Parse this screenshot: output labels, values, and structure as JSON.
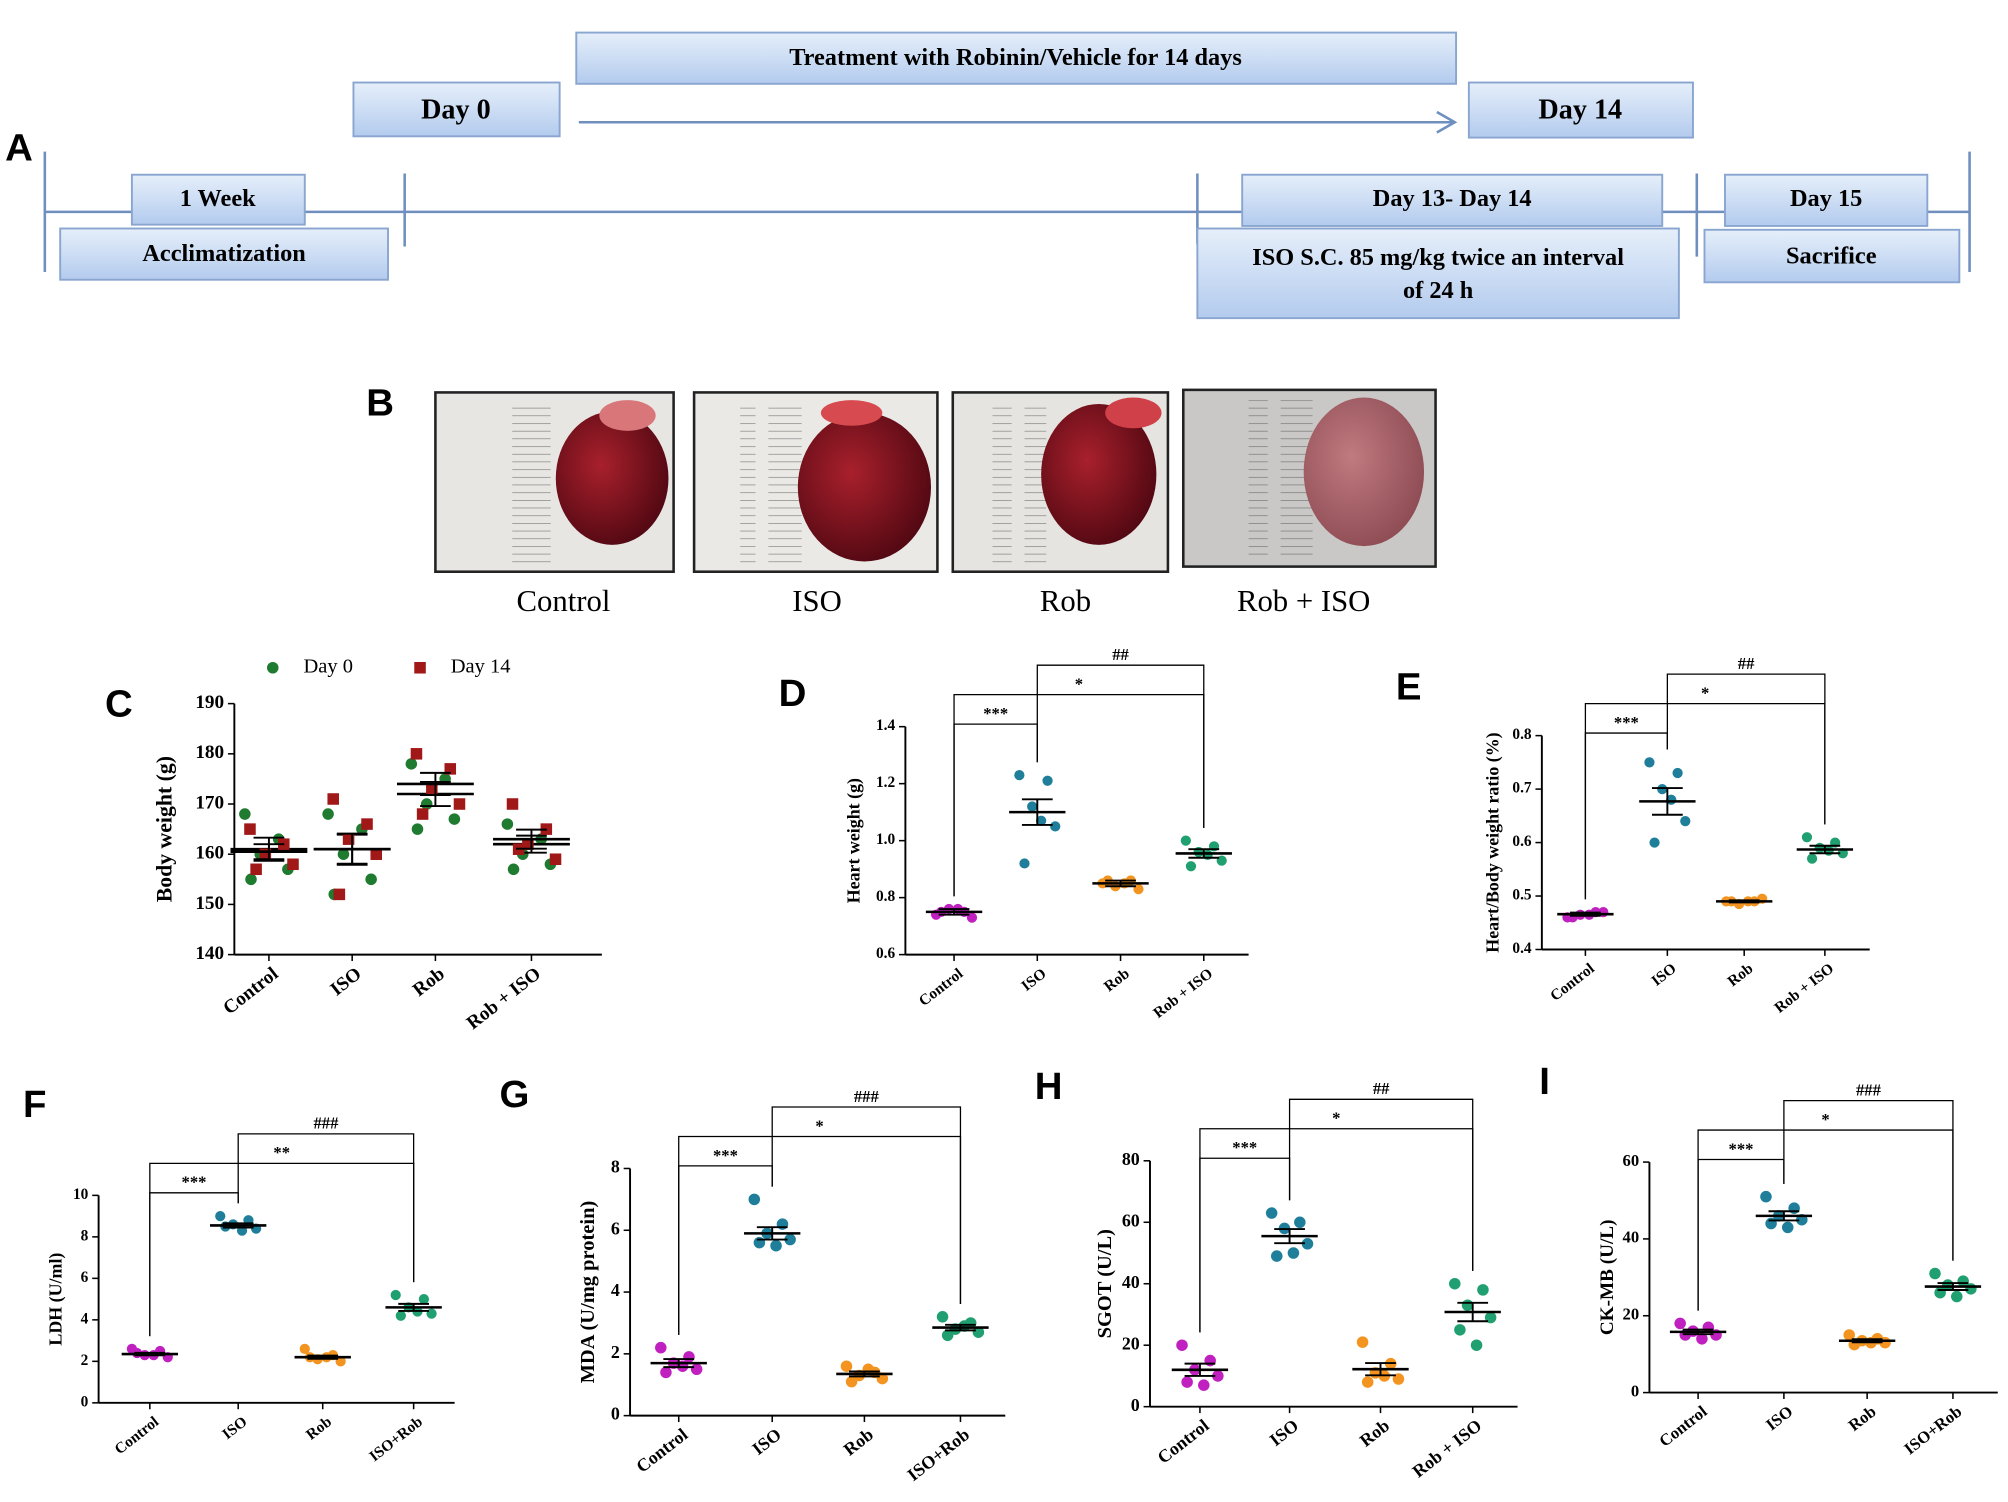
{
  "timeline": {
    "panel": "A",
    "treatment": "Treatment with Robinin/Vehicle for 14 days",
    "start": "Day 0",
    "end": "Day 14",
    "week": "1 Week",
    "acclimatization": "Acclimatization",
    "iso_days": "Day 13- Day 14",
    "iso_text": [
      "ISO S.C. 85 mg/kg twice an interval",
      "of 24 h"
    ],
    "day15": "Day 15",
    "sacrifice": "Sacrifice"
  },
  "photos": {
    "panel": "B",
    "labels": [
      "Control",
      "ISO",
      "Rob",
      "Rob + ISO"
    ]
  },
  "chart_data": [
    {
      "type": "scatter",
      "panel": "C",
      "ylabel": "Body weight (g)",
      "categories": [
        "Control",
        "ISO",
        "Rob",
        "Rob + ISO"
      ],
      "ylim": [
        140,
        190
      ],
      "yticks": [
        140,
        150,
        160,
        170,
        180,
        190
      ],
      "series": [
        {
          "name": "Day 0",
          "color": "#1e7b30",
          "marker": "circle",
          "points": [
            [
              168,
              163,
              160,
              157,
              155
            ],
            [
              168,
              165,
              160,
              155,
              152
            ],
            [
              178,
              175,
              170,
              167,
              165
            ],
            [
              166,
              163,
              160,
              158,
              157
            ]
          ],
          "mean": [
            161,
            161,
            172,
            162
          ],
          "sem": [
            2.3,
            2.9,
            2.4,
            1.7
          ]
        },
        {
          "name": "Day 14",
          "color": "#a01818",
          "marker": "square",
          "points": [
            [
              165,
              162,
              160,
              158,
              157
            ],
            [
              171,
              166,
              163,
              160,
              152
            ],
            [
              180,
              177,
              173,
              170,
              168
            ],
            [
              170,
              165,
              162,
              159,
              161
            ]
          ],
          "mean": [
            160.5,
            161,
            174,
            163
          ],
          "sem": [
            1.5,
            3.1,
            2.2,
            1.9
          ]
        }
      ],
      "comparisons": []
    },
    {
      "type": "scatter",
      "panel": "D",
      "ylabel": "Heart weight (g)",
      "categories": [
        "Control",
        "ISO",
        "Rob",
        "Rob + ISO"
      ],
      "ylim": [
        0.6,
        1.4
      ],
      "yticks": [
        0.6,
        0.8,
        {
          "value": 1,
          "label": "1.0"
        },
        1.2,
        1.4
      ],
      "colors": [
        "#c020c0",
        "#1f7f9a",
        "#f39420",
        "#20a070"
      ],
      "points": [
        [
          0.74,
          0.75,
          0.76,
          0.73,
          0.75,
          0.76
        ],
        [
          1.23,
          1.21,
          1.12,
          1.05,
          0.92,
          1.07
        ],
        [
          0.85,
          0.86,
          0.84,
          0.83,
          0.86,
          0.85
        ],
        [
          1.0,
          0.98,
          0.96,
          0.93,
          0.91,
          0.95
        ]
      ],
      "mean": [
        0.75,
        1.1,
        0.85,
        0.955
      ],
      "sem": [
        0.01,
        0.045,
        0.01,
        0.015
      ],
      "comparisons": [
        {
          "pair": [
            "Control",
            "ISO"
          ],
          "label": "***"
        },
        {
          "pair": [
            "Control",
            "Rob + ISO"
          ],
          "label": "*"
        },
        {
          "pair": [
            "ISO",
            "Rob + ISO"
          ],
          "label": "##"
        }
      ]
    },
    {
      "type": "scatter",
      "panel": "E",
      "ylabel": "Heart/Body weight ratio (%)",
      "categories": [
        "Control",
        "ISO",
        "Rob",
        "Rob + ISO"
      ],
      "ylim": [
        0.4,
        0.8
      ],
      "yticks": [
        0.4,
        0.5,
        0.6,
        0.7,
        0.8
      ],
      "colors": [
        "#c020c0",
        "#1f7f9a",
        "#f39420",
        "#20a070"
      ],
      "points": [
        [
          0.46,
          0.47,
          0.465,
          0.47,
          0.46,
          0.465
        ],
        [
          0.75,
          0.73,
          0.7,
          0.64,
          0.6,
          0.68
        ],
        [
          0.49,
          0.49,
          0.485,
          0.495,
          0.49,
          0.49
        ],
        [
          0.61,
          0.6,
          0.59,
          0.58,
          0.57,
          0.585
        ]
      ],
      "mean": [
        0.466,
        0.677,
        0.49,
        0.587
      ],
      "sem": [
        0.003,
        0.025,
        0.002,
        0.007
      ],
      "comparisons": [
        {
          "pair": [
            "Control",
            "ISO"
          ],
          "label": "***"
        },
        {
          "pair": [
            "Control",
            "Rob + ISO"
          ],
          "label": "*"
        },
        {
          "pair": [
            "ISO",
            "Rob + ISO"
          ],
          "label": "##"
        }
      ]
    },
    {
      "type": "scatter",
      "panel": "F",
      "ylabel": "LDH (U/ml)",
      "categories": [
        "Control",
        "ISO",
        "Rob",
        "ISO+Rob"
      ],
      "ylim": [
        0,
        10
      ],
      "yticks": [
        0,
        2,
        4,
        6,
        8,
        10
      ],
      "colors": [
        "#c020c0",
        "#1f7f9a",
        "#f39420",
        "#20a070"
      ],
      "points": [
        [
          2.6,
          2.5,
          2.3,
          2.2,
          2.4,
          2.3
        ],
        [
          9.0,
          8.8,
          8.6,
          8.4,
          8.5,
          8.3
        ],
        [
          2.6,
          2.3,
          2.1,
          2.0,
          2.2,
          2.2
        ],
        [
          5.2,
          5.0,
          4.6,
          4.3,
          4.2,
          4.4
        ]
      ],
      "mean": [
        2.35,
        8.55,
        2.2,
        4.6
      ],
      "sem": [
        0.06,
        0.1,
        0.08,
        0.17
      ],
      "comparisons": [
        {
          "pair": [
            "Control",
            "ISO"
          ],
          "label": "***"
        },
        {
          "pair": [
            "Control",
            "ISO+Rob"
          ],
          "label": "**"
        },
        {
          "pair": [
            "ISO",
            "ISO+Rob"
          ],
          "label": "###"
        }
      ]
    },
    {
      "type": "scatter",
      "panel": "G",
      "ylabel": "MDA (U/mg protein)",
      "categories": [
        "Control",
        "ISO",
        "Rob",
        "ISO+Rob"
      ],
      "ylim": [
        0,
        8
      ],
      "yticks": [
        0,
        2,
        4,
        6,
        8
      ],
      "colors": [
        "#c020c0",
        "#1f7f9a",
        "#f39420",
        "#20a070"
      ],
      "points": [
        [
          2.2,
          1.9,
          1.7,
          1.5,
          1.4,
          1.6
        ],
        [
          7.0,
          6.2,
          5.9,
          5.7,
          5.6,
          5.5
        ],
        [
          1.6,
          1.4,
          1.3,
          1.2,
          1.1,
          1.5
        ],
        [
          3.2,
          3.0,
          2.8,
          2.7,
          2.6,
          2.9
        ]
      ],
      "mean": [
        1.7,
        5.9,
        1.35,
        2.85
      ],
      "sem": [
        0.13,
        0.2,
        0.08,
        0.09
      ],
      "comparisons": [
        {
          "pair": [
            "Control",
            "ISO"
          ],
          "label": "***"
        },
        {
          "pair": [
            "Control",
            "ISO+Rob"
          ],
          "label": "*"
        },
        {
          "pair": [
            "ISO",
            "ISO+Rob"
          ],
          "label": "###"
        }
      ]
    },
    {
      "type": "scatter",
      "panel": "H",
      "ylabel": "SGOT (U/L)",
      "categories": [
        "Control",
        "ISO",
        "Rob",
        "Rob + ISO"
      ],
      "ylim": [
        0,
        80
      ],
      "yticks": [
        0,
        20,
        40,
        60,
        80
      ],
      "colors": [
        "#c020c0",
        "#1f7f9a",
        "#f39420",
        "#20a070"
      ],
      "points": [
        [
          20,
          15,
          12,
          10,
          8,
          7
        ],
        [
          63,
          60,
          58,
          53,
          49,
          50
        ],
        [
          21,
          14,
          11,
          9,
          8,
          10
        ],
        [
          40,
          38,
          33,
          29,
          25,
          20
        ]
      ],
      "mean": [
        12,
        55.5,
        12.2,
        30.8
      ],
      "sem": [
        2,
        2.3,
        2,
        3
      ],
      "comparisons": [
        {
          "pair": [
            "Control",
            "ISO"
          ],
          "label": "***"
        },
        {
          "pair": [
            "Control",
            "Rob + ISO"
          ],
          "label": "*"
        },
        {
          "pair": [
            "ISO",
            "Rob + ISO"
          ],
          "label": "##"
        }
      ]
    },
    {
      "type": "scatter",
      "panel": "I",
      "ylabel": "CK-MB (U/L)",
      "categories": [
        "Control",
        "ISO",
        "Rob",
        "ISO+Rob"
      ],
      "ylim": [
        0,
        60
      ],
      "yticks": [
        0,
        20,
        40,
        60
      ],
      "colors": [
        "#c020c0",
        "#1f7f9a",
        "#f39420",
        "#20a070"
      ],
      "points": [
        [
          18,
          17,
          16,
          15,
          15,
          14
        ],
        [
          51,
          48,
          46,
          45,
          44,
          43
        ],
        [
          15,
          14,
          13.5,
          13,
          12.5,
          13
        ],
        [
          31,
          29,
          28,
          27,
          26,
          25
        ]
      ],
      "mean": [
        15.8,
        46,
        13.5,
        27.6
      ],
      "sem": [
        0.6,
        1.2,
        0.4,
        0.9
      ],
      "comparisons": [
        {
          "pair": [
            "Control",
            "ISO"
          ],
          "label": "***"
        },
        {
          "pair": [
            "Control",
            "ISO+Rob"
          ],
          "label": "*"
        },
        {
          "pair": [
            "ISO",
            "ISO+Rob"
          ],
          "label": "###"
        }
      ]
    }
  ]
}
